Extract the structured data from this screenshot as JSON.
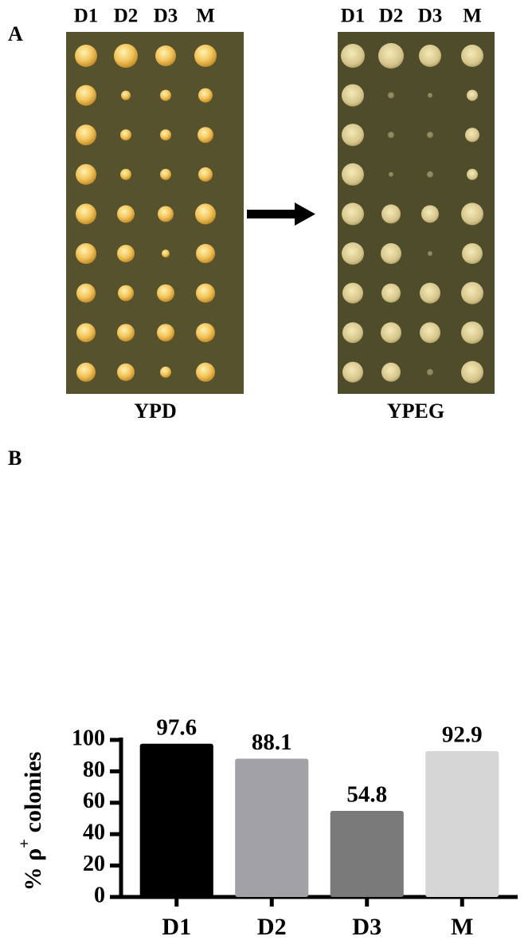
{
  "panel_a": {
    "label": "A",
    "plates": [
      {
        "columns": [
          "D1",
          "D2",
          "D3",
          "M"
        ],
        "name": "YPD"
      },
      {
        "columns": [
          "D1",
          "D2",
          "D3",
          "M"
        ],
        "name": "YPEG"
      }
    ]
  },
  "panel_b_label": "B",
  "chart_data": {
    "type": "bar",
    "ylabel": {
      "text": "% ρ",
      "superscript": "+",
      "rest": "colonies"
    },
    "categories": [
      "D1",
      "D2",
      "D3",
      "M"
    ],
    "values": [
      97.6,
      88.1,
      54.8,
      92.9
    ],
    "colors": [
      "#000000",
      "#a2a2a6",
      "#7a7a7a",
      "#d6d6d6"
    ],
    "ylim": [
      0,
      100
    ],
    "yticks": [
      0,
      20,
      40,
      60,
      80,
      100
    ],
    "grid": false
  }
}
